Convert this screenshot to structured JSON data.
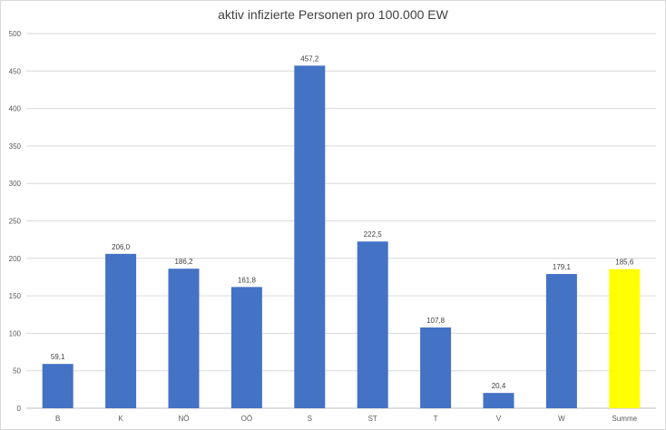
{
  "chart_data": {
    "type": "bar",
    "title": "aktiv infizierte Personen pro 100.000 EW",
    "xlabel": "",
    "ylabel": "",
    "categories": [
      "B",
      "K",
      "NÖ",
      "OÖ",
      "S",
      "ST",
      "T",
      "V",
      "W",
      "Summe"
    ],
    "values": [
      59.1,
      206.0,
      186.2,
      161.8,
      457.2,
      222.5,
      107.8,
      20.4,
      179.1,
      185.6
    ],
    "data_labels": [
      "59,1",
      "206,0",
      "186,2",
      "161,8",
      "457,2",
      "222,5",
      "107,8",
      "20,4",
      "179,1",
      "185,6"
    ],
    "ylim": [
      0,
      500
    ],
    "yticks": [
      0,
      50,
      100,
      150,
      200,
      250,
      300,
      350,
      400,
      450,
      500
    ],
    "grid": true,
    "legend": "none",
    "colors": {
      "default": "#4472C4",
      "highlight": "#FFFF00",
      "highlight_category": "Summe"
    }
  }
}
